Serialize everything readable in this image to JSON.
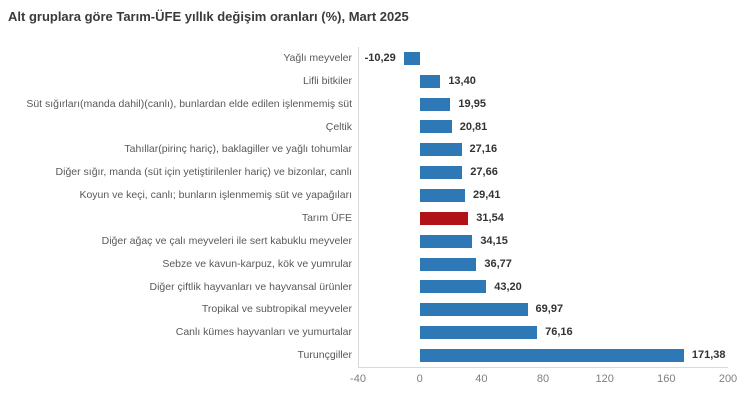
{
  "title": "Alt gruplara göre Tarım-ÜFE yıllık değişim oranları (%), Mart 2025",
  "chart_data": {
    "type": "bar",
    "orientation": "horizontal",
    "title": "Alt gruplara göre Tarım-ÜFE yıllık değişim oranları (%), Mart 2025",
    "categories": [
      "Yağlı meyveler",
      "Lifli bitkiler",
      "Süt sığırları(manda dahil)(canlı), bunlardan elde edilen işlenmemiş süt",
      "Çeltik",
      "Tahıllar(pirinç hariç), baklagiller ve yağlı tohumlar",
      "Diğer sığır, manda (süt için yetiştirilenler hariç) ve bizonlar, canlı",
      "Koyun ve keçi, canlı; bunların işlenmemiş süt ve yapağıları",
      "Tarım ÜFE",
      "Diğer ağaç ve çalı meyveleri ile sert kabuklu meyveler",
      "Sebze ve kavun-karpuz, kök ve yumrular",
      "Diğer çiftlik hayvanları ve hayvansal ürünler",
      "Tropikal ve subtropikal meyveler",
      "Canlı kümes hayvanları ve yumurtalar",
      "Turunçgiller"
    ],
    "values": [
      -10.29,
      13.4,
      19.95,
      20.81,
      27.16,
      27.66,
      29.41,
      31.54,
      34.15,
      36.77,
      43.2,
      69.97,
      76.16,
      171.38
    ],
    "value_labels": [
      "-10,29",
      "13,40",
      "19,95",
      "20,81",
      "27,16",
      "27,66",
      "29,41",
      "31,54",
      "34,15",
      "36,77",
      "43,20",
      "69,97",
      "76,16",
      "171,38"
    ],
    "highlight_index": 7,
    "bar_color": "#2e79b5",
    "highlight_color": "#b01217",
    "xlabel": "",
    "ylabel": "",
    "xlim": [
      -40,
      200
    ],
    "x_ticks": [
      -40,
      0,
      40,
      80,
      120,
      160,
      200
    ],
    "x_tick_labels": [
      "-40",
      "0",
      "40",
      "80",
      "120",
      "160",
      "200"
    ],
    "legend": "none",
    "grid": "none"
  }
}
